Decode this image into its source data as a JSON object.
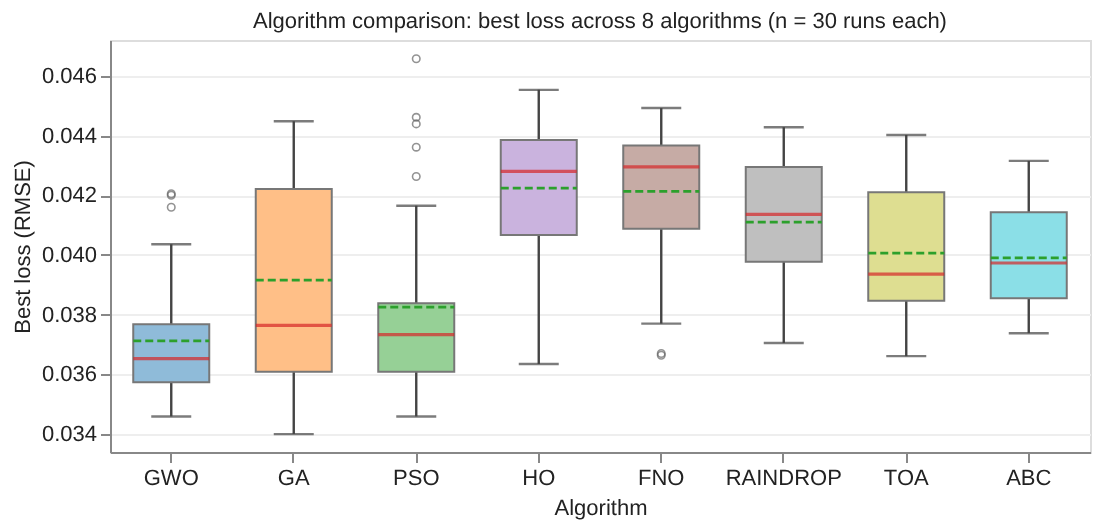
{
  "chart_data": {
    "type": "box",
    "title": "Algorithm comparison: best loss across 8 algorithms (n = 30 runs each)",
    "xlabel": "Algorithm",
    "ylabel": "Best loss (RMSE)",
    "categories": [
      "GWO",
      "GA",
      "PSO",
      "HO",
      "FNO",
      "RAINDROP",
      "TOA",
      "ABC"
    ],
    "colors": [
      "#8fbbd9",
      "#ffbf87",
      "#96d096",
      "#cab3de",
      "#c6aba5",
      "#bfbfbf",
      "#dede91",
      "#8bdfe7"
    ],
    "boxes": [
      {
        "low": 0.03459,
        "q1": 0.03574,
        "median": 0.03653,
        "q3": 0.03768,
        "high": 0.04036,
        "mean": 0.03712,
        "outliers": [
          0.0416,
          0.042,
          0.04205
        ]
      },
      {
        "low": 0.034,
        "q1": 0.03609,
        "median": 0.03764,
        "q3": 0.04221,
        "high": 0.04448,
        "mean": 0.03916
      },
      {
        "low": 0.03459,
        "q1": 0.03609,
        "median": 0.03733,
        "q3": 0.03838,
        "high": 0.04165,
        "mean": 0.03825,
        "outliers": [
          0.04263,
          0.04361,
          0.04439,
          0.04461,
          0.04657
        ]
      },
      {
        "low": 0.03635,
        "q1": 0.04067,
        "median": 0.0428,
        "q3": 0.04385,
        "high": 0.04553,
        "mean": 0.04224
      },
      {
        "low": 0.0377,
        "q1": 0.04088,
        "median": 0.04295,
        "q3": 0.04367,
        "high": 0.04492,
        "mean": 0.04213,
        "outliers": [
          0.03664,
          0.0367
        ]
      },
      {
        "low": 0.03705,
        "q1": 0.03977,
        "median": 0.04136,
        "q3": 0.04295,
        "high": 0.04428,
        "mean": 0.0411
      },
      {
        "low": 0.03661,
        "q1": 0.03847,
        "median": 0.03936,
        "q3": 0.0421,
        "high": 0.04402,
        "mean": 0.04006
      },
      {
        "low": 0.03738,
        "q1": 0.03855,
        "median": 0.03973,
        "q3": 0.04143,
        "high": 0.04315,
        "mean": 0.0399
      }
    ],
    "ylim": [
      0.0334,
      0.0472
    ],
    "yticks": [
      0.034,
      0.036,
      0.038,
      {
        "value": 0.04,
        "label": "0.040"
      },
      0.042,
      0.044,
      0.046
    ],
    "grid": "y"
  }
}
